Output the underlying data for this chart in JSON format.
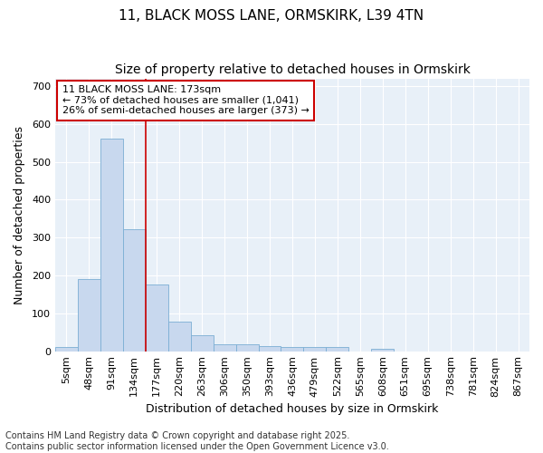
{
  "title1": "11, BLACK MOSS LANE, ORMSKIRK, L39 4TN",
  "title2": "Size of property relative to detached houses in Ormskirk",
  "xlabel": "Distribution of detached houses by size in Ormskirk",
  "ylabel": "Number of detached properties",
  "bin_labels": [
    "5sqm",
    "48sqm",
    "91sqm",
    "134sqm",
    "177sqm",
    "220sqm",
    "263sqm",
    "306sqm",
    "350sqm",
    "393sqm",
    "436sqm",
    "479sqm",
    "522sqm",
    "565sqm",
    "608sqm",
    "651sqm",
    "695sqm",
    "738sqm",
    "781sqm",
    "824sqm",
    "867sqm"
  ],
  "bar_heights": [
    10,
    190,
    560,
    323,
    175,
    77,
    43,
    18,
    18,
    13,
    11,
    11,
    10,
    0,
    5,
    0,
    0,
    0,
    0,
    0,
    0
  ],
  "bar_color": "#c8d8ee",
  "bar_edge_color": "#7baed4",
  "vline_color": "#cc0000",
  "annotation_text": "11 BLACK MOSS LANE: 173sqm\n← 73% of detached houses are smaller (1,041)\n26% of semi-detached houses are larger (373) →",
  "annotation_box_color": "#ffffff",
  "annotation_box_edge_color": "#cc0000",
  "ylim": [
    0,
    720
  ],
  "yticks": [
    0,
    100,
    200,
    300,
    400,
    500,
    600,
    700
  ],
  "plot_bg_color": "#e8f0f8",
  "fig_bg_color": "#ffffff",
  "grid_color": "#ffffff",
  "footer": "Contains HM Land Registry data © Crown copyright and database right 2025.\nContains public sector information licensed under the Open Government Licence v3.0.",
  "title_fontsize": 11,
  "subtitle_fontsize": 10,
  "axis_label_fontsize": 9,
  "tick_fontsize": 8,
  "annotation_fontsize": 8,
  "footer_fontsize": 7,
  "vline_bin_index": 4
}
